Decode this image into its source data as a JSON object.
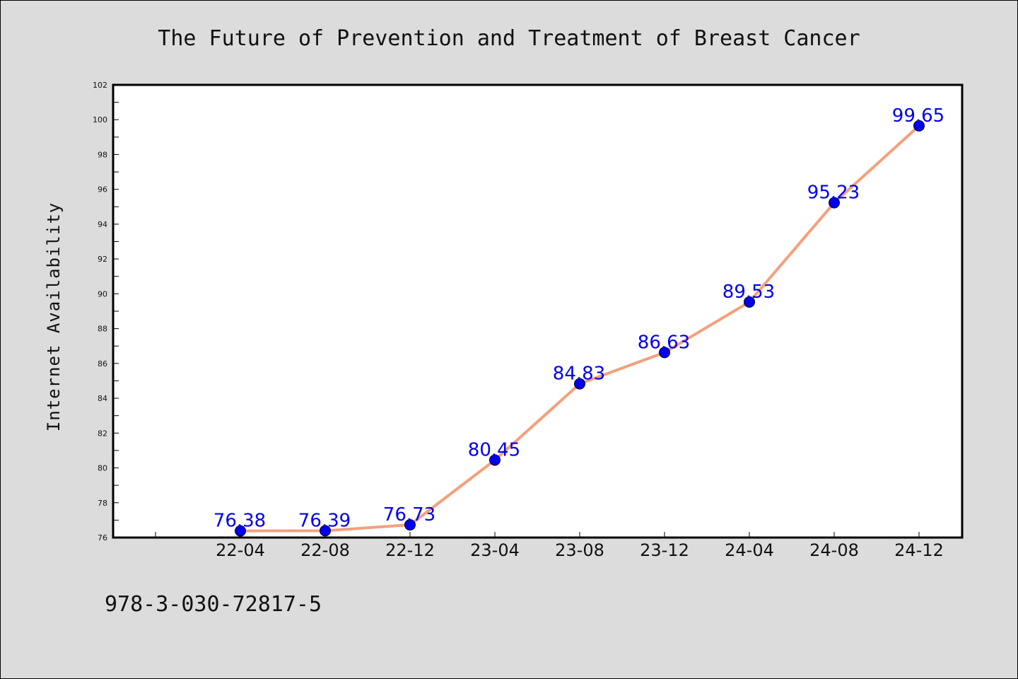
{
  "chart_data": {
    "type": "line",
    "title": "The Future of Prevention and Treatment of Breast Cancer",
    "ylabel": "Internet Availability",
    "xlabel": "",
    "categories": [
      "22-04",
      "22-08",
      "22-12",
      "23-04",
      "23-08",
      "23-12",
      "24-04",
      "24-08",
      "24-12"
    ],
    "values": [
      76.38,
      76.39,
      76.73,
      80.45,
      84.83,
      86.63,
      89.53,
      95.23,
      99.65
    ],
    "data_labels": [
      "76.38",
      "76.39",
      "76.73",
      "80.45",
      "84.83",
      "86.63",
      "89.53",
      "95.23",
      "99.65"
    ],
    "ylim": [
      76,
      102
    ],
    "y_ticks": [
      76,
      78,
      80,
      82,
      84,
      86,
      88,
      90,
      92,
      94,
      96,
      98,
      100,
      102
    ],
    "grid": false,
    "colors": {
      "line": "#f4a07c",
      "marker": "#0000ee",
      "label": "#0000ee",
      "plot_bg": "#ffffff",
      "page_bg": "#dcdcdc"
    }
  },
  "footnote": "978-3-030-72817-5"
}
